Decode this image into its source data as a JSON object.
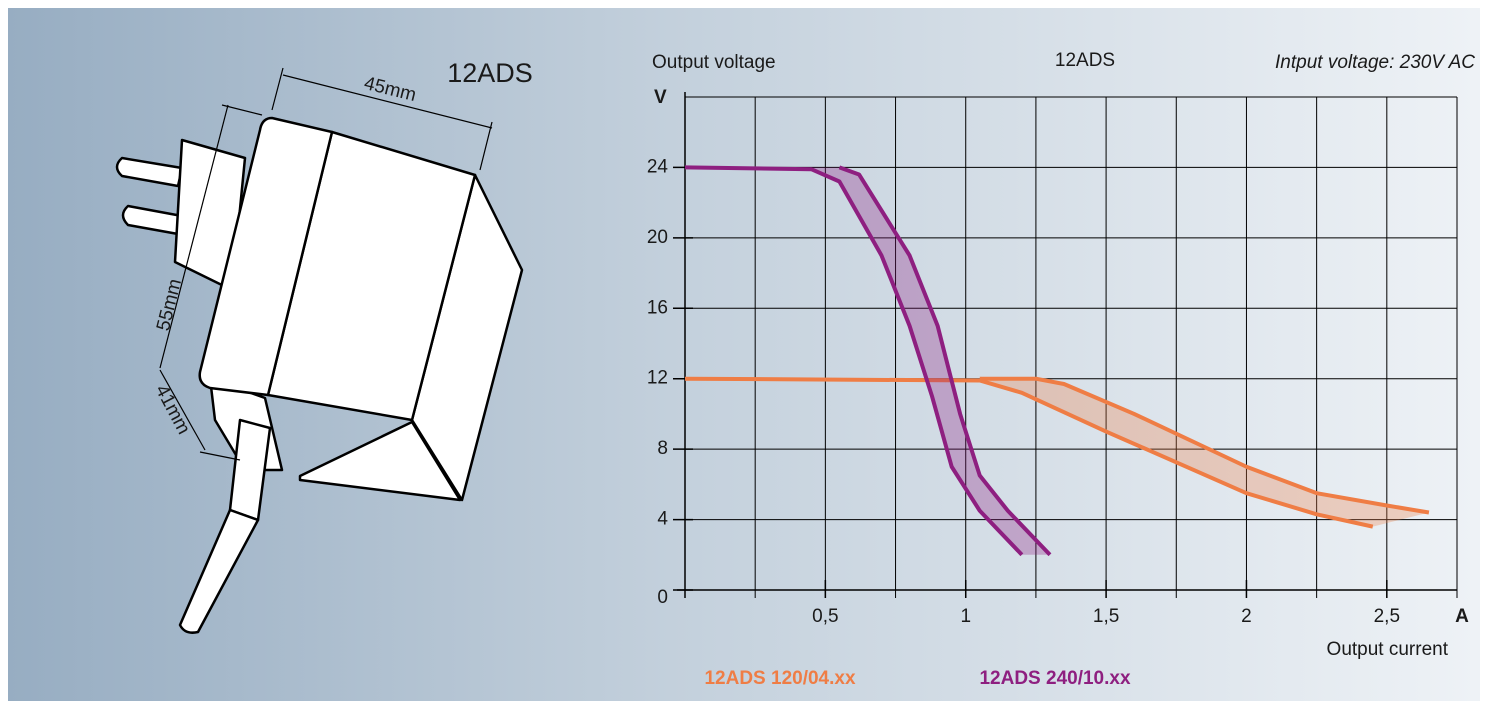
{
  "drawing": {
    "label": "12ADS",
    "width": "45mm",
    "height": "55mm",
    "depth": "41mm"
  },
  "chart_data": {
    "type": "band",
    "title": "12ADS",
    "subtitle": "Intput voltage: 230V AC",
    "y_label": "Output voltage",
    "y_unit": "V",
    "x_label": "Output current",
    "x_unit": "A",
    "xlim": [
      0,
      2.75
    ],
    "ylim": [
      0,
      28
    ],
    "xticks": [
      {
        "value": 0.5,
        "label": "0,5"
      },
      1,
      {
        "value": 1.5,
        "label": "1,5"
      },
      2,
      {
        "value": 2.5,
        "label": "2,5"
      }
    ],
    "yticks": [
      0,
      4,
      8,
      12,
      16,
      20,
      24
    ],
    "xgrid": [
      0.25,
      0.5,
      0.75,
      1,
      1.25,
      1.5,
      1.75,
      2,
      2.25,
      2.5,
      2.75
    ],
    "ygrid": [
      4,
      8,
      12,
      16,
      20,
      24,
      28
    ],
    "grid": true,
    "series": [
      {
        "name": "12ADS 120/04.xx",
        "color": "#ef7d45",
        "curves": [
          {
            "x": [
              0,
              1.05,
              1.2,
              1.5,
              2,
              2.25,
              2.45
            ],
            "values": [
              12,
              11.9,
              11.2,
              9,
              5.5,
              4.3,
              3.6
            ]
          },
          {
            "x": [
              1.05,
              1.25,
              1.35,
              1.6,
              2,
              2.25,
              2.5,
              2.65
            ],
            "values": [
              12,
              12,
              11.7,
              10,
              7,
              5.5,
              4.8,
              4.4
            ]
          }
        ]
      },
      {
        "name": "12ADS 240/10.xx",
        "color": "#8e1f80",
        "curves": [
          {
            "x": [
              0,
              0.45,
              0.55,
              0.7,
              0.8,
              0.88,
              0.95,
              1.05,
              1.2
            ],
            "values": [
              24,
              23.9,
              23.2,
              19,
              15,
              11,
              7,
              4.5,
              2
            ]
          },
          {
            "x": [
              0.55,
              0.62,
              0.8,
              0.9,
              0.98,
              1.05,
              1.15,
              1.3
            ],
            "values": [
              24,
              23.6,
              19,
              15,
              10,
              6.5,
              4.5,
              2
            ]
          }
        ]
      }
    ]
  }
}
